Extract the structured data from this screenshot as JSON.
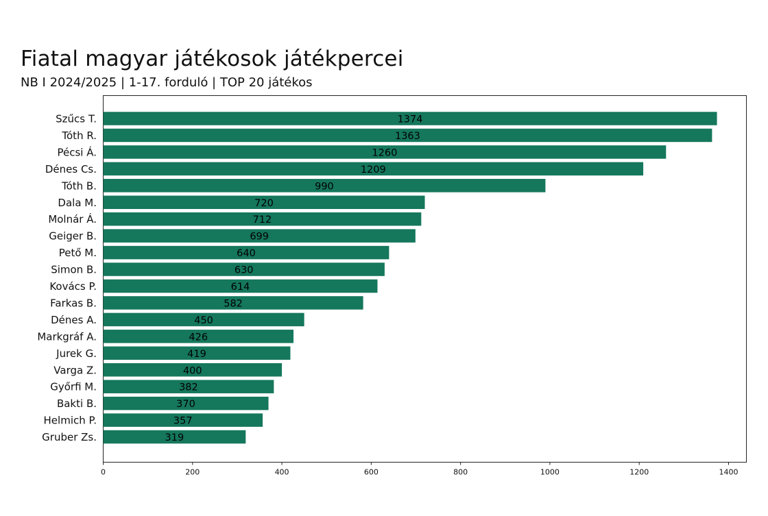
{
  "chart_data": {
    "type": "bar",
    "orientation": "horizontal",
    "title": "Fiatal magyar játékosok játékpercei",
    "subtitle": "NB I 2024/2025 | 1-17. forduló | TOP 20 játékos",
    "xlabel": "",
    "ylabel": "",
    "xlim": [
      0,
      1420
    ],
    "xticks": [
      0,
      200,
      400,
      600,
      800,
      1000,
      1200,
      1400
    ],
    "grid": false,
    "bar_color": "#15775c",
    "categories": [
      "Szűcs T.",
      "Tóth R.",
      "Pécsi Á.",
      "Dénes Cs.",
      "Tóth B.",
      "Dala M.",
      "Molnár Á.",
      "Geiger B.",
      "Pető M.",
      "Simon B.",
      "Kovács P.",
      "Farkas B.",
      "Dénes A.",
      "Markgráf A.",
      "Jurek G.",
      "Varga Z.",
      "Győrfi M.",
      "Bakti B.",
      "Helmich P.",
      "Gruber Zs."
    ],
    "values": [
      1374,
      1363,
      1260,
      1209,
      990,
      720,
      712,
      699,
      640,
      630,
      614,
      582,
      450,
      426,
      419,
      400,
      382,
      370,
      357,
      319
    ]
  }
}
